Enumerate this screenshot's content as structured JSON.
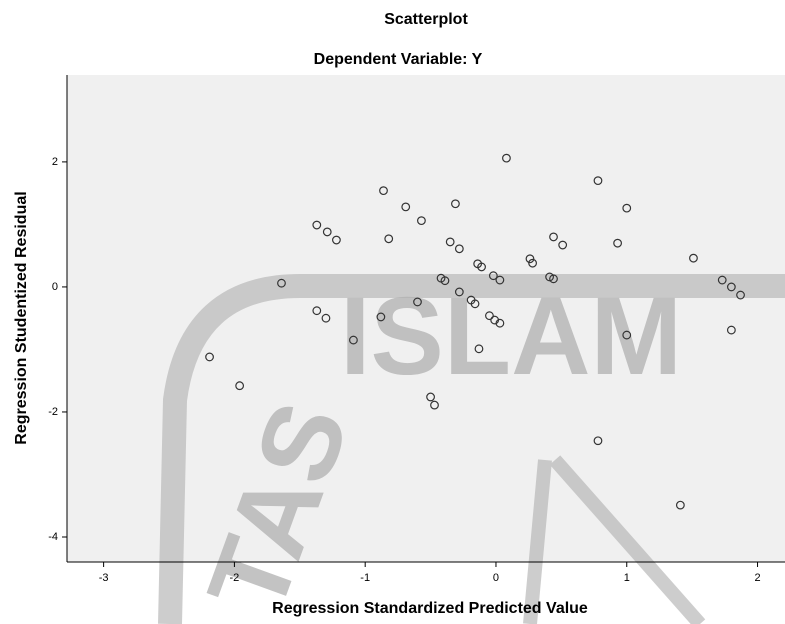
{
  "chart_data": {
    "type": "scatter",
    "title": "Scatterplot",
    "subtitle": "Dependent Variable: Y",
    "xlabel": "Regression Standardized Predicted Value",
    "ylabel": "Regression Studentized Residual",
    "watermark": [
      "ISLAM",
      "TAS"
    ],
    "color": "#333333",
    "xlim": [
      -3.28,
      2.21
    ],
    "ylim": [
      -4.4,
      3.39
    ],
    "xticks": [
      -3,
      -2,
      -1,
      0,
      1,
      2
    ],
    "yticks": [
      -4,
      -2,
      0,
      2
    ],
    "x": [
      -2.19,
      -1.96,
      -1.64,
      -1.37,
      -1.29,
      -1.22,
      -1.37,
      -1.3,
      -1.09,
      -0.88,
      -0.86,
      -0.82,
      -0.69,
      -0.57,
      -0.6,
      -0.5,
      -0.47,
      -0.42,
      -0.39,
      -0.35,
      -0.31,
      -0.28,
      -0.28,
      -0.19,
      -0.16,
      -0.14,
      -0.11,
      -0.13,
      -0.05,
      -0.02,
      -0.01,
      0.03,
      0.03,
      0.08,
      0.26,
      0.28,
      0.41,
      0.44,
      0.44,
      0.51,
      0.78,
      0.78,
      0.93,
      1.0,
      1.0,
      1.41,
      1.51,
      1.73,
      1.8,
      1.8,
      1.87
    ],
    "values": [
      -1.12,
      -1.58,
      0.06,
      0.99,
      0.88,
      0.75,
      -0.38,
      -0.5,
      -0.85,
      -0.48,
      1.54,
      0.77,
      1.28,
      1.06,
      -0.24,
      -1.76,
      -1.89,
      0.14,
      0.1,
      0.72,
      1.33,
      0.61,
      -0.08,
      -0.21,
      -0.27,
      0.37,
      0.32,
      -0.99,
      -0.46,
      0.18,
      -0.53,
      0.11,
      -0.58,
      2.06,
      0.45,
      0.38,
      0.16,
      0.13,
      0.8,
      0.67,
      1.7,
      -2.46,
      0.7,
      1.26,
      -0.77,
      -3.49,
      0.46,
      0.11,
      -0.69,
      0.0,
      -0.13
    ]
  }
}
